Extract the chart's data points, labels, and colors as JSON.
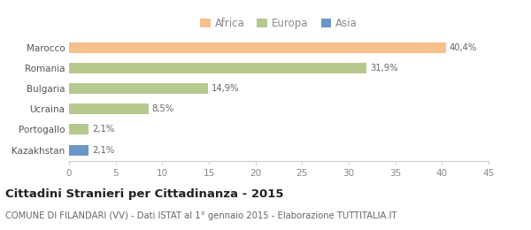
{
  "categories": [
    "Kazakhstan",
    "Portogallo",
    "Ucraina",
    "Bulgaria",
    "Romania",
    "Marocco"
  ],
  "values": [
    2.1,
    2.1,
    8.5,
    14.9,
    31.9,
    40.4
  ],
  "labels": [
    "2,1%",
    "2,1%",
    "8,5%",
    "14,9%",
    "31,9%",
    "40,4%"
  ],
  "colors": [
    "#6b96c8",
    "#b5c98e",
    "#b5c98e",
    "#b5c98e",
    "#b5c98e",
    "#f5c08a"
  ],
  "xlim": [
    0,
    45
  ],
  "xticks": [
    0,
    5,
    10,
    15,
    20,
    25,
    30,
    35,
    40,
    45
  ],
  "title": "Cittadini Stranieri per Cittadinanza - 2015",
  "subtitle": "COMUNE DI FILANDARI (VV) - Dati ISTAT al 1° gennaio 2015 - Elaborazione TUTTITALIA.IT",
  "legend": [
    {
      "label": "Africa",
      "color": "#f5c08a"
    },
    {
      "label": "Europa",
      "color": "#b5c98e"
    },
    {
      "label": "Asia",
      "color": "#6b96c8"
    }
  ],
  "background_color": "#ffffff",
  "bar_height": 0.52,
  "title_fontsize": 9.5,
  "subtitle_fontsize": 7.2,
  "tick_fontsize": 7.5,
  "label_fontsize": 7.2,
  "legend_fontsize": 8.5
}
